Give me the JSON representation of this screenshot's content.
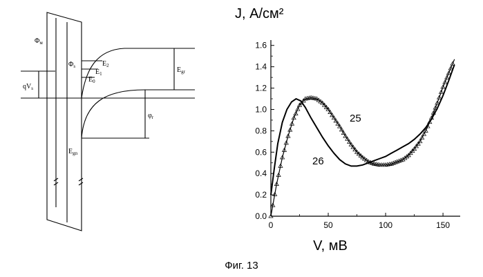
{
  "figure": {
    "caption": "Фиг. 13"
  },
  "band_diagram": {
    "labels": {
      "phi_m": "Φ",
      "phi_m_sub": "м",
      "phi_s": "Φ",
      "phi_s_sub": "s",
      "qv": "qV",
      "qv_sub": "s",
      "e2": "E",
      "e2_sub": "2",
      "e1": "E",
      "e1_sub": "1",
      "e0": "E",
      "e0_sub": "0",
      "eg_right": "E",
      "eg_right_sub": "gr",
      "eg_center": "E",
      "eg_center_sub": "gn",
      "phi_r": "φ",
      "phi_r_sub": "r"
    }
  },
  "chart_data": {
    "type": "line",
    "ylabel": "J, А/см²",
    "xlabel": "V, мВ",
    "xlim": [
      0,
      165
    ],
    "ylim": [
      0.0,
      1.65
    ],
    "x_ticks": [
      "0",
      "50",
      "100",
      "150"
    ],
    "y_ticks": [
      "0.0",
      "0.2",
      "0.4",
      "0.6",
      "0.8",
      "1.0",
      "1.2",
      "1.4",
      "1.6"
    ],
    "x_tick_values": [
      0,
      50,
      100,
      150
    ],
    "y_tick_values": [
      0.0,
      0.2,
      0.4,
      0.6,
      0.8,
      1.0,
      1.2,
      1.4,
      1.6
    ],
    "series": [
      {
        "name": "25",
        "marker": "triangle",
        "x": [
          0,
          5,
          10,
          15,
          20,
          25,
          30,
          35,
          40,
          45,
          50,
          55,
          60,
          65,
          70,
          75,
          80,
          85,
          90,
          95,
          100,
          105,
          110,
          115,
          120,
          125,
          130,
          135,
          140,
          145,
          150,
          155,
          160
        ],
        "y": [
          0.0,
          0.3,
          0.55,
          0.75,
          0.92,
          1.04,
          1.1,
          1.11,
          1.1,
          1.06,
          1.0,
          0.92,
          0.84,
          0.75,
          0.67,
          0.6,
          0.55,
          0.51,
          0.49,
          0.48,
          0.48,
          0.49,
          0.51,
          0.53,
          0.57,
          0.63,
          0.7,
          0.8,
          0.92,
          1.06,
          1.21,
          1.34,
          1.47
        ]
      },
      {
        "name": "26",
        "marker": "none",
        "x": [
          0,
          3,
          6,
          10,
          14,
          18,
          22,
          26,
          30,
          35,
          40,
          45,
          50,
          55,
          60,
          65,
          70,
          75,
          80,
          85,
          90,
          95,
          100,
          105,
          110,
          115,
          120,
          125,
          130,
          135,
          140,
          145,
          150,
          155,
          160
        ],
        "y": [
          0.2,
          0.45,
          0.68,
          0.88,
          1.0,
          1.07,
          1.1,
          1.08,
          1.02,
          0.92,
          0.83,
          0.74,
          0.66,
          0.59,
          0.53,
          0.49,
          0.47,
          0.47,
          0.48,
          0.5,
          0.52,
          0.54,
          0.56,
          0.59,
          0.62,
          0.65,
          0.68,
          0.72,
          0.77,
          0.83,
          0.91,
          1.01,
          1.13,
          1.27,
          1.42
        ]
      }
    ],
    "series_labels": [
      "25",
      "26"
    ]
  }
}
